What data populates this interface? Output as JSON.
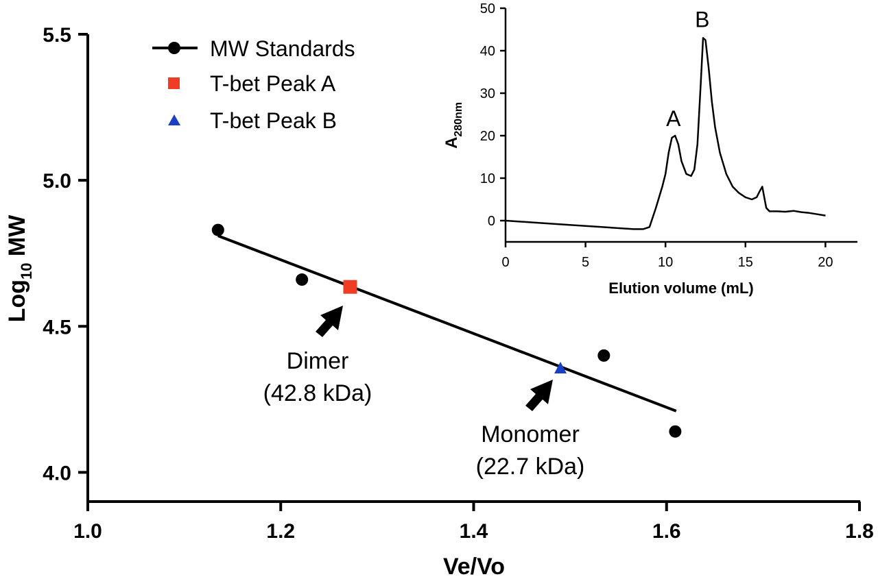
{
  "chart_data": [
    {
      "type": "scatter",
      "xlabel": "Ve/Vo",
      "ylabel_main": "Log",
      "ylabel_sub": "10",
      "ylabel_tail": " MW",
      "xlim": [
        1.0,
        1.8
      ],
      "ylim": [
        3.9,
        5.5
      ],
      "xticks": [
        "1.0",
        "1.2",
        "1.4",
        "1.6",
        "1.8"
      ],
      "yticks": [
        "4.0",
        "4.5",
        "5.0",
        "5.5"
      ],
      "legend": [
        {
          "name": "MW Standards",
          "marker": "circle",
          "color": "#000000"
        },
        {
          "name": "T-bet Peak A",
          "marker": "square",
          "color": "#f03c24"
        },
        {
          "name": "T-bet Peak B",
          "marker": "triangle",
          "color": "#1a3fc4"
        }
      ],
      "series": [
        {
          "name": "MW Standards",
          "points": [
            {
              "x": 1.135,
              "y": 4.83
            },
            {
              "x": 1.222,
              "y": 4.66
            },
            {
              "x": 1.535,
              "y": 4.4
            },
            {
              "x": 1.609,
              "y": 4.14
            }
          ]
        },
        {
          "name": "T-bet Peak A",
          "points": [
            {
              "x": 1.272,
              "y": 4.635
            }
          ]
        },
        {
          "name": "T-bet Peak B",
          "points": [
            {
              "x": 1.49,
              "y": 4.355
            }
          ]
        }
      ],
      "fit_line": {
        "x": [
          1.135,
          1.61
        ],
        "y": [
          4.81,
          4.21
        ]
      },
      "annotations": [
        {
          "line1": "Dimer",
          "line2": "(42.8 kDa)"
        },
        {
          "line1": "Monomer",
          "line2": "(22.7 kDa)"
        }
      ]
    },
    {
      "type": "line",
      "xlabel": "Elution volume (mL)",
      "ylabel_main": "A",
      "ylabel_sub": "280nm",
      "xlim": [
        0,
        22
      ],
      "ylim": [
        -5,
        50
      ],
      "xticks": [
        "0",
        "5",
        "10",
        "15",
        "20"
      ],
      "yticks": [
        "0",
        "10",
        "20",
        "30",
        "40",
        "50"
      ],
      "peak_labels": [
        {
          "label": "A",
          "x": 10.5,
          "y": 20
        },
        {
          "label": "B",
          "x": 12.3,
          "y": 43.3
        }
      ],
      "trace": {
        "x": [
          0,
          2,
          4,
          6,
          8,
          8.6,
          9.0,
          9.4,
          9.8,
          10.0,
          10.2,
          10.4,
          10.6,
          10.8,
          11.0,
          11.3,
          11.6,
          11.8,
          12.0,
          12.2,
          12.35,
          12.5,
          12.7,
          12.9,
          13.1,
          13.4,
          13.8,
          14.2,
          14.6,
          15.0,
          15.4,
          15.7,
          15.9,
          16.05,
          16.15,
          16.3,
          16.5,
          17,
          17.5,
          18,
          18.5,
          19,
          19.5,
          20
        ],
        "y": [
          0,
          -0.5,
          -1,
          -1.5,
          -2,
          -2.0,
          -1.5,
          3,
          8,
          11,
          16,
          19.5,
          20,
          18,
          14,
          11,
          10.5,
          12,
          18,
          32,
          43,
          42.5,
          36,
          28,
          22,
          16,
          11,
          8,
          6.5,
          5.5,
          5,
          5.5,
          7,
          8,
          6,
          3,
          2.2,
          2.2,
          2.1,
          2.3,
          2.0,
          1.8,
          1.5,
          1.2
        ]
      }
    }
  ]
}
